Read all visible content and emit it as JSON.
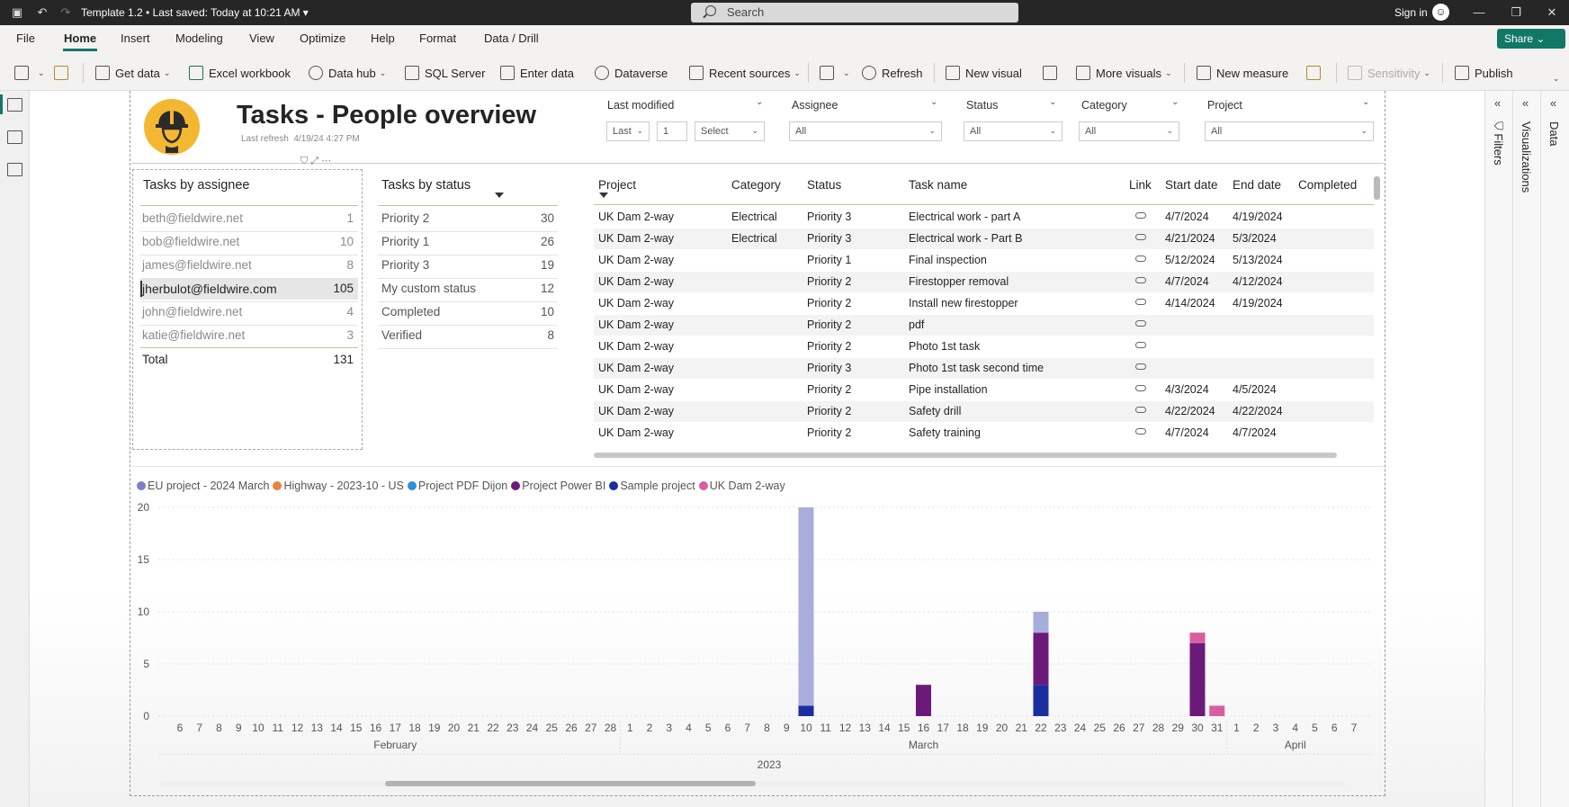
{
  "titlebar": {
    "doc_title": "Template 1.2 • Last saved: Today at 10:21 AM ▾",
    "search_placeholder": "Search",
    "sign_in": "Sign in"
  },
  "menu": {
    "tabs": [
      "File",
      "Home",
      "Insert",
      "Modeling",
      "View",
      "Optimize",
      "Help",
      "Format",
      "Data / Drill"
    ],
    "share": "Share"
  },
  "ribbon": {
    "get_data": "Get data",
    "excel": "Excel workbook",
    "data_hub": "Data hub",
    "sql": "SQL Server",
    "enter_data": "Enter data",
    "dataverse": "Dataverse",
    "recent": "Recent sources",
    "refresh": "Refresh",
    "new_visual": "New visual",
    "more_visuals": "More visuals",
    "new_measure": "New measure",
    "sensitivity": "Sensitivity",
    "publish": "Publish"
  },
  "header": {
    "title": "Tasks - People overview",
    "refresh_label": "Last refresh",
    "refresh_time": "4/19/24 4:27 PM"
  },
  "slicers": {
    "last_modified": {
      "label": "Last modified",
      "mode": "Last",
      "count": "1",
      "unit": "Select"
    },
    "assignee": {
      "label": "Assignee",
      "value": "All"
    },
    "status": {
      "label": "Status",
      "value": "All"
    },
    "category": {
      "label": "Category",
      "value": "All"
    },
    "project": {
      "label": "Project",
      "value": "All"
    }
  },
  "assignee_table": {
    "title": "Tasks by assignee",
    "rows": [
      {
        "name": "beth@fieldwire.net",
        "count": "1"
      },
      {
        "name": "bob@fieldwire.net",
        "count": "10"
      },
      {
        "name": "james@fieldwire.net",
        "count": "8"
      },
      {
        "name": "jherbulot@fieldwire.com",
        "count": "105"
      },
      {
        "name": "john@fieldwire.net",
        "count": "4"
      },
      {
        "name": "katie@fieldwire.net",
        "count": "3"
      }
    ],
    "total_label": "Total",
    "total": "131"
  },
  "status_table": {
    "title": "Tasks by status",
    "rows": [
      {
        "name": "Priority 2",
        "count": "30"
      },
      {
        "name": "Priority 1",
        "count": "26"
      },
      {
        "name": "Priority 3",
        "count": "19"
      },
      {
        "name": "My custom status",
        "count": "12"
      },
      {
        "name": "Completed",
        "count": "10"
      },
      {
        "name": "Verified",
        "count": "8"
      }
    ]
  },
  "task_table": {
    "columns": [
      "Project",
      "Category",
      "Status",
      "Task name",
      "Link",
      "Start date",
      "End date",
      "Completed"
    ],
    "rows": [
      {
        "project": "UK Dam 2-way",
        "category": "Electrical",
        "status": "Priority 3",
        "task": "Electrical work - part A",
        "start": "4/7/2024",
        "end": "4/19/2024"
      },
      {
        "project": "UK Dam 2-way",
        "category": "Electrical",
        "status": "Priority 3",
        "task": "Electrical work - Part B",
        "start": "4/21/2024",
        "end": "5/3/2024"
      },
      {
        "project": "UK Dam 2-way",
        "category": "",
        "status": "Priority 1",
        "task": "Final inspection",
        "start": "5/12/2024",
        "end": "5/13/2024"
      },
      {
        "project": "UK Dam 2-way",
        "category": "",
        "status": "Priority 2",
        "task": "Firestopper removal",
        "start": "4/7/2024",
        "end": "4/12/2024"
      },
      {
        "project": "UK Dam 2-way",
        "category": "",
        "status": "Priority 2",
        "task": "Install new firestopper",
        "start": "4/14/2024",
        "end": "4/19/2024"
      },
      {
        "project": "UK Dam 2-way",
        "category": "",
        "status": "Priority 2",
        "task": "pdf",
        "start": "",
        "end": ""
      },
      {
        "project": "UK Dam 2-way",
        "category": "",
        "status": "Priority 2",
        "task": "Photo 1st task",
        "start": "",
        "end": ""
      },
      {
        "project": "UK Dam 2-way",
        "category": "",
        "status": "Priority 3",
        "task": "Photo 1st task second time",
        "start": "",
        "end": ""
      },
      {
        "project": "UK Dam 2-way",
        "category": "",
        "status": "Priority 2",
        "task": "Pipe installation",
        "start": "4/3/2024",
        "end": "4/5/2024"
      },
      {
        "project": "UK Dam 2-way",
        "category": "",
        "status": "Priority 2",
        "task": "Safety drill",
        "start": "4/22/2024",
        "end": "4/22/2024"
      },
      {
        "project": "UK Dam 2-way",
        "category": "",
        "status": "Priority 2",
        "task": "Safety training",
        "start": "4/7/2024",
        "end": "4/7/2024"
      }
    ]
  },
  "colors": {
    "accent": "#117865",
    "EU project - 2024 March": "#7b7ec8",
    "Highway - 2023-10 - US": "#e8843c",
    "Project PDF Dijon": "#2e8de0",
    "Project Power BI": "#6c1a7a",
    "Sample project": "#1a2ea0",
    "UK Dam 2-way": "#d85ea0"
  },
  "chart_data": {
    "type": "bar",
    "stacked": true,
    "categories": [
      "6",
      "7",
      "8",
      "9",
      "10",
      "11",
      "12",
      "13",
      "14",
      "15",
      "16",
      "17",
      "18",
      "19",
      "20",
      "21",
      "22",
      "23",
      "24",
      "25",
      "26",
      "27",
      "28",
      "1",
      "2",
      "3",
      "4",
      "5",
      "6",
      "7",
      "8",
      "9",
      "10",
      "11",
      "12",
      "13",
      "14",
      "15",
      "16",
      "17",
      "18",
      "19",
      "20",
      "21",
      "22",
      "23",
      "24",
      "25",
      "26",
      "27",
      "28",
      "29",
      "30",
      "31",
      "1",
      "2",
      "3",
      "4",
      "5",
      "6",
      "7"
    ],
    "months": [
      {
        "label": "February",
        "start": 0,
        "end": 22
      },
      {
        "label": "March",
        "start": 23,
        "end": 53
      },
      {
        "label": "April",
        "start": 54,
        "end": 60
      }
    ],
    "year": "2023",
    "legend": [
      "EU project - 2024 March",
      "Highway - 2023-10 - US",
      "Project PDF Dijon",
      "Project Power BI",
      "Sample project",
      "UK Dam 2-way"
    ],
    "series": [
      {
        "name": "EU project - 2024 March",
        "values": {
          "32": 19,
          "44": 2
        }
      },
      {
        "name": "Highway - 2023-10 - US",
        "values": {}
      },
      {
        "name": "Project PDF Dijon",
        "values": {}
      },
      {
        "name": "Project Power BI",
        "values": {
          "38": 3,
          "44": 5,
          "52": 7
        }
      },
      {
        "name": "Sample project",
        "values": {
          "32": 1,
          "44": 3
        }
      },
      {
        "name": "UK Dam 2-way",
        "values": {
          "52": 1,
          "53": 1
        }
      }
    ],
    "ylim": [
      0,
      20
    ],
    "yticks": [
      0,
      5,
      10,
      15,
      20
    ]
  },
  "panes": {
    "filters": "Filters",
    "visualizations": "Visualizations",
    "data": "Data"
  }
}
